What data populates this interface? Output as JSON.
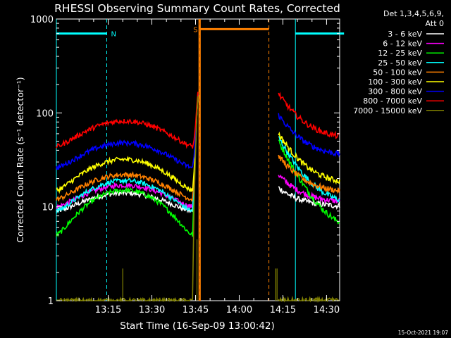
{
  "chart_data": {
    "type": "line",
    "title": "RHESSI Observing Summary Count Rates, Corrected",
    "xlabel": "Start Time (16-Sep-09 13:00:42)",
    "ylabel": "Corrected Count Rate (s⁻¹ detector⁻¹)",
    "yscale": "log",
    "xlim_minutes": [
      -2.8,
      94.5
    ],
    "ylim": [
      1,
      1000
    ],
    "x_ticks": [
      {
        "t": 15,
        "label": "13:15"
      },
      {
        "t": 30,
        "label": "13:30"
      },
      {
        "t": 45,
        "label": "13:45"
      },
      {
        "t": 60,
        "label": "14:00"
      },
      {
        "t": 75,
        "label": "14:15"
      },
      {
        "t": 90,
        "label": "14:30"
      }
    ],
    "y_ticks": [
      {
        "v": 1,
        "label": "1"
      },
      {
        "v": 10,
        "label": "10"
      },
      {
        "v": 100,
        "label": "100"
      },
      {
        "v": 1000,
        "label": "1000"
      }
    ],
    "detector_label": "Det 1,3,4,5,6,9,",
    "attenuator_label": "Att 0",
    "flags": [
      {
        "label": "N",
        "color": "#00ffff",
        "start": -2.8,
        "end": 14.5,
        "markers": [
          -2.8,
          14.5
        ],
        "level": 700
      },
      {
        "label": "S",
        "color": "#ff8000",
        "start": 46.4,
        "end": 70.2,
        "markers": [
          46.4,
          70.2
        ],
        "level": 780
      },
      {
        "label": "",
        "color": "#00ffff",
        "start": 79.3,
        "end": 96.5,
        "markers": [
          79.3,
          96.5
        ],
        "level": 700
      }
    ],
    "series": [
      {
        "name": "3 - 6 keV",
        "color": "#ffffff",
        "min_a": 9,
        "peak_a": 14,
        "base_b": 16,
        "end_b": 10,
        "peak_max": 250
      },
      {
        "name": "6 - 12 keV",
        "color": "#ff00ff",
        "min_a": 10,
        "peak_a": 17,
        "base_b": 22,
        "end_b": 11,
        "peak_max": 250
      },
      {
        "name": "12 - 25 keV",
        "color": "#00ff00",
        "min_a": 5,
        "peak_a": 15,
        "base_b": 50,
        "end_b": 5,
        "peak_max": 250
      },
      {
        "name": "25 - 50 keV",
        "color": "#00ffff",
        "min_a": 9,
        "peak_a": 19,
        "base_b": 55,
        "end_b": 10,
        "peak_max": 250
      },
      {
        "name": "50 - 100 keV",
        "color": "#ff8000",
        "min_a": 12,
        "peak_a": 22,
        "base_b": 35,
        "end_b": 14,
        "peak_max": 250
      },
      {
        "name": "100 - 300 keV",
        "color": "#ffff00",
        "min_a": 15,
        "peak_a": 32,
        "base_b": 60,
        "end_b": 17,
        "peak_max": 250
      },
      {
        "name": "300 - 800 keV",
        "color": "#0000ff",
        "min_a": 26,
        "peak_a": 48,
        "base_b": 95,
        "end_b": 34,
        "peak_max": 250
      },
      {
        "name": "800 - 7000 keV",
        "color": "#ff0000",
        "min_a": 44,
        "peak_a": 82,
        "base_b": 160,
        "end_b": 52,
        "peak_max": 250
      },
      {
        "name": "7000 - 15000 keV",
        "color": "#808000",
        "min_a": 1,
        "peak_a": 1,
        "base_b": 1,
        "end_b": 1,
        "peak_max": 250
      }
    ]
  },
  "footer": {
    "timestamp": "15-Oct-2021 19:07"
  }
}
